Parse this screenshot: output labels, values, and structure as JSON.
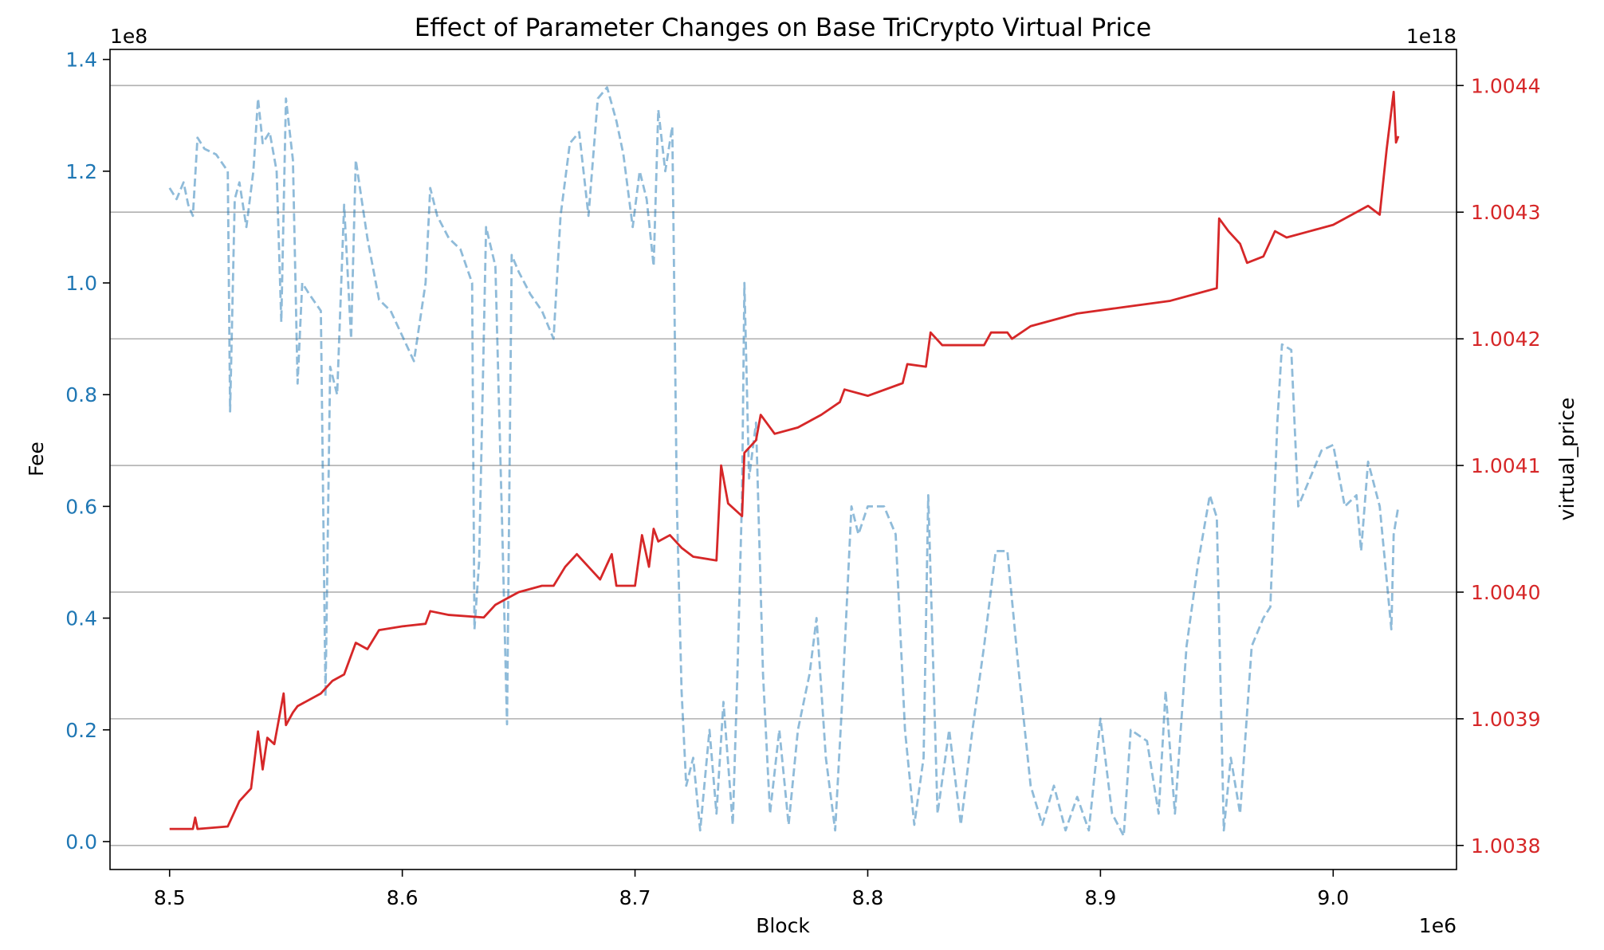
{
  "chart_data": {
    "type": "line",
    "title": "Effect of Parameter Changes on Base TriCrypto Virtual Price",
    "xlabel": "Block",
    "ylabel": "Fee",
    "y2label": "virtual_price",
    "x_offset_label": "1e6",
    "y_offset_label": "1e8",
    "y2_offset_label": "1e18",
    "xlim": [
      8.4744,
      9.053
    ],
    "ylim": [
      -0.05,
      1.418
    ],
    "y2lim": [
      1.003781,
      1.0044285
    ],
    "xticks": [
      8.5,
      8.6,
      8.7,
      8.8,
      8.9,
      {
        "value": 9.0,
        "label": "9.0"
      }
    ],
    "yticks": [
      {
        "value": 0,
        "label": "0.0"
      },
      0.2,
      0.4,
      0.6,
      0.8,
      {
        "value": 1.0,
        "label": "1.0"
      },
      1.2,
      1.4
    ],
    "y2ticks": [
      1.0038,
      1.0039,
      {
        "value": 1.004,
        "label": "1.0040"
      },
      1.0041,
      1.0042,
      1.0043,
      1.0044
    ],
    "grid": "y2",
    "series": [
      {
        "name": "Fee",
        "color": "#1f77b4",
        "alpha": 0.5,
        "line_style": "dashed",
        "axis": "y",
        "x": [
          8.5,
          8.503,
          8.506,
          8.508,
          8.51,
          8.512,
          8.515,
          8.52,
          8.525,
          8.526,
          8.528,
          8.53,
          8.533,
          8.536,
          8.538,
          8.54,
          8.543,
          8.546,
          8.548,
          8.55,
          8.553,
          8.555,
          8.557,
          8.56,
          8.565,
          8.567,
          8.569,
          8.572,
          8.575,
          8.578,
          8.58,
          8.585,
          8.59,
          8.595,
          8.605,
          8.61,
          8.612,
          8.615,
          8.62,
          8.625,
          8.63,
          8.631,
          8.633,
          8.636,
          8.64,
          8.643,
          8.645,
          8.647,
          8.65,
          8.655,
          8.66,
          8.665,
          8.668,
          8.672,
          8.676,
          8.68,
          8.684,
          8.688,
          8.692,
          8.695,
          8.699,
          8.702,
          8.705,
          8.708,
          8.71,
          8.713,
          8.716,
          8.718,
          8.72,
          8.722,
          8.725,
          8.728,
          8.732,
          8.735,
          8.738,
          8.742,
          8.744,
          8.746,
          8.747,
          8.749,
          8.752,
          8.755,
          8.758,
          8.762,
          8.766,
          8.77,
          8.775,
          8.778,
          8.782,
          8.786,
          8.789,
          8.793,
          8.796,
          8.8,
          8.807,
          8.812,
          8.816,
          8.82,
          8.824,
          8.826,
          8.83,
          8.835,
          8.84,
          8.845,
          8.85,
          8.855,
          8.86,
          8.865,
          8.87,
          8.875,
          8.88,
          8.885,
          8.89,
          8.895,
          8.9,
          8.905,
          8.91,
          8.913,
          8.92,
          8.925,
          8.928,
          8.932,
          8.937,
          8.942,
          8.947,
          8.95,
          8.953,
          8.956,
          8.96,
          8.965,
          8.97,
          8.973,
          8.976,
          8.978,
          8.982,
          8.985,
          8.99,
          8.995,
          9.0,
          9.005,
          9.01,
          9.012,
          9.015,
          9.02,
          9.025,
          9.026,
          9.028
        ],
        "values": [
          1.17,
          1.15,
          1.18,
          1.14,
          1.12,
          1.26,
          1.24,
          1.23,
          1.2,
          0.77,
          1.15,
          1.18,
          1.1,
          1.2,
          1.33,
          1.25,
          1.27,
          1.2,
          0.93,
          1.33,
          1.22,
          0.82,
          1.0,
          0.98,
          0.95,
          0.26,
          0.85,
          0.8,
          1.14,
          0.9,
          1.22,
          1.08,
          0.97,
          0.95,
          0.86,
          1.0,
          1.17,
          1.12,
          1.08,
          1.06,
          1.0,
          0.38,
          0.5,
          1.1,
          1.03,
          0.55,
          0.21,
          1.05,
          1.02,
          0.98,
          0.95,
          0.9,
          1.12,
          1.25,
          1.27,
          1.12,
          1.33,
          1.35,
          1.29,
          1.23,
          1.1,
          1.2,
          1.15,
          1.03,
          1.31,
          1.2,
          1.28,
          0.6,
          0.27,
          0.1,
          0.15,
          0.02,
          0.2,
          0.05,
          0.25,
          0.03,
          0.3,
          0.62,
          1.0,
          0.65,
          0.75,
          0.3,
          0.05,
          0.2,
          0.03,
          0.2,
          0.3,
          0.4,
          0.15,
          0.02,
          0.25,
          0.6,
          0.55,
          0.6,
          0.6,
          0.55,
          0.2,
          0.03,
          0.15,
          0.62,
          0.05,
          0.2,
          0.03,
          0.2,
          0.35,
          0.52,
          0.52,
          0.3,
          0.1,
          0.03,
          0.1,
          0.02,
          0.08,
          0.02,
          0.22,
          0.05,
          0.01,
          0.2,
          0.18,
          0.05,
          0.27,
          0.05,
          0.35,
          0.5,
          0.62,
          0.58,
          0.02,
          0.15,
          0.05,
          0.35,
          0.4,
          0.42,
          0.75,
          0.89,
          0.88,
          0.6,
          0.65,
          0.7,
          0.71,
          0.6,
          0.62,
          0.52,
          0.68,
          0.6,
          0.38,
          0.55,
          0.6
        ]
      },
      {
        "name": "virtual_price",
        "color": "#d62728",
        "alpha": 1,
        "line_style": "solid",
        "axis": "y2",
        "x": [
          8.5,
          8.51,
          8.511,
          8.512,
          8.525,
          8.53,
          8.535,
          8.538,
          8.54,
          8.542,
          8.545,
          8.549,
          8.55,
          8.553,
          8.555,
          8.565,
          8.57,
          8.575,
          8.58,
          8.585,
          8.59,
          8.6,
          8.61,
          8.612,
          8.62,
          8.635,
          8.64,
          8.645,
          8.65,
          8.66,
          8.665,
          8.67,
          8.675,
          8.68,
          8.685,
          8.69,
          8.692,
          8.7,
          8.703,
          8.706,
          8.708,
          8.71,
          8.715,
          8.72,
          8.725,
          8.735,
          8.737,
          8.74,
          8.746,
          8.747,
          8.752,
          8.754,
          8.76,
          8.77,
          8.78,
          8.788,
          8.79,
          8.8,
          8.815,
          8.817,
          8.825,
          8.827,
          8.832,
          8.84,
          8.85,
          8.853,
          8.86,
          8.862,
          8.87,
          8.89,
          8.91,
          8.93,
          8.94,
          8.95,
          8.951,
          8.955,
          8.96,
          8.963,
          8.97,
          8.975,
          8.98,
          8.99,
          9.0,
          9.01,
          9.015,
          9.02,
          9.023,
          9.026,
          9.027,
          9.028
        ],
        "values": [
          1.003813,
          1.003813,
          1.003822,
          1.003813,
          1.003815,
          1.003835,
          1.003845,
          1.00389,
          1.00386,
          1.003885,
          1.00388,
          1.00392,
          1.003895,
          1.003905,
          1.00391,
          1.00392,
          1.00393,
          1.003935,
          1.00396,
          1.003955,
          1.00397,
          1.003973,
          1.003975,
          1.003985,
          1.003982,
          1.00398,
          1.00399,
          1.003995,
          1.004,
          1.004005,
          1.004005,
          1.00402,
          1.00403,
          1.00402,
          1.00401,
          1.00403,
          1.004005,
          1.004005,
          1.004045,
          1.00402,
          1.00405,
          1.00404,
          1.004045,
          1.004035,
          1.004028,
          1.004025,
          1.0041,
          1.00407,
          1.00406,
          1.00411,
          1.00412,
          1.00414,
          1.004125,
          1.00413,
          1.00414,
          1.00415,
          1.00416,
          1.004155,
          1.004165,
          1.00418,
          1.004178,
          1.004205,
          1.004195,
          1.004195,
          1.004195,
          1.004205,
          1.004205,
          1.0042,
          1.00421,
          1.00422,
          1.004225,
          1.00423,
          1.004235,
          1.00424,
          1.004295,
          1.004285,
          1.004275,
          1.00426,
          1.004265,
          1.004285,
          1.00428,
          1.004285,
          1.00429,
          1.0043,
          1.004305,
          1.004298,
          1.00435,
          1.004395,
          1.004355,
          1.00436
        ]
      }
    ]
  }
}
